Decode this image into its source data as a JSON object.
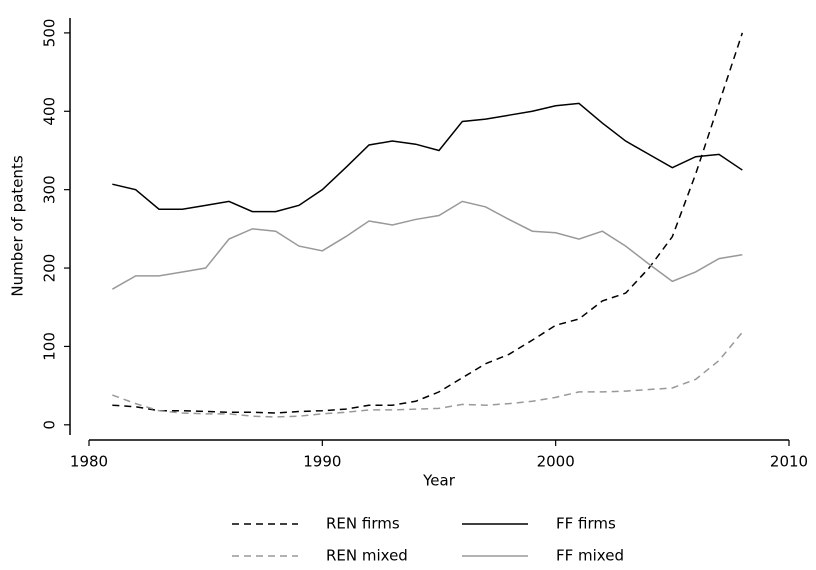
{
  "chart_data": {
    "type": "line",
    "x": [
      1981,
      1982,
      1983,
      1984,
      1985,
      1986,
      1987,
      1988,
      1989,
      1990,
      1991,
      1992,
      1993,
      1994,
      1995,
      1996,
      1997,
      1998,
      1999,
      2000,
      2001,
      2002,
      2003,
      2004,
      2005,
      2006,
      2007,
      2008
    ],
    "series": [
      {
        "name": "REN firms",
        "color": "#000000",
        "dashed": true,
        "values": [
          25,
          23,
          18,
          18,
          17,
          16,
          16,
          15,
          17,
          18,
          20,
          25,
          25,
          30,
          42,
          60,
          78,
          90,
          108,
          127,
          135,
          158,
          168,
          200,
          240,
          320,
          410,
          500
        ]
      },
      {
        "name": "FF firms",
        "color": "#000000",
        "dashed": false,
        "values": [
          307,
          300,
          275,
          275,
          280,
          285,
          272,
          272,
          280,
          300,
          328,
          357,
          362,
          358,
          350,
          387,
          390,
          395,
          400,
          407,
          410,
          385,
          362,
          345,
          328,
          342,
          345,
          325
        ]
      },
      {
        "name": "REN mixed",
        "color": "#999999",
        "dashed": true,
        "values": [
          38,
          27,
          18,
          15,
          14,
          14,
          11,
          10,
          11,
          14,
          16,
          19,
          19,
          20,
          21,
          26,
          25,
          27,
          30,
          35,
          42,
          42,
          43,
          45,
          47,
          58,
          82,
          118
        ]
      },
      {
        "name": "FF mixed",
        "color": "#999999",
        "dashed": false,
        "values": [
          173,
          190,
          190,
          195,
          200,
          237,
          250,
          247,
          228,
          222,
          240,
          260,
          255,
          262,
          267,
          285,
          278,
          262,
          247,
          245,
          237,
          247,
          228,
          205,
          183,
          195,
          212,
          217
        ]
      }
    ],
    "xlabel": "Year",
    "ylabel": "Number of patents",
    "xlim": [
      1980,
      2010
    ],
    "xticks": [
      1980,
      1990,
      2000,
      2010
    ],
    "ylim": [
      -13,
      519
    ],
    "yticks": [
      0,
      100,
      200,
      300,
      400,
      500
    ],
    "legend": "bottom"
  }
}
